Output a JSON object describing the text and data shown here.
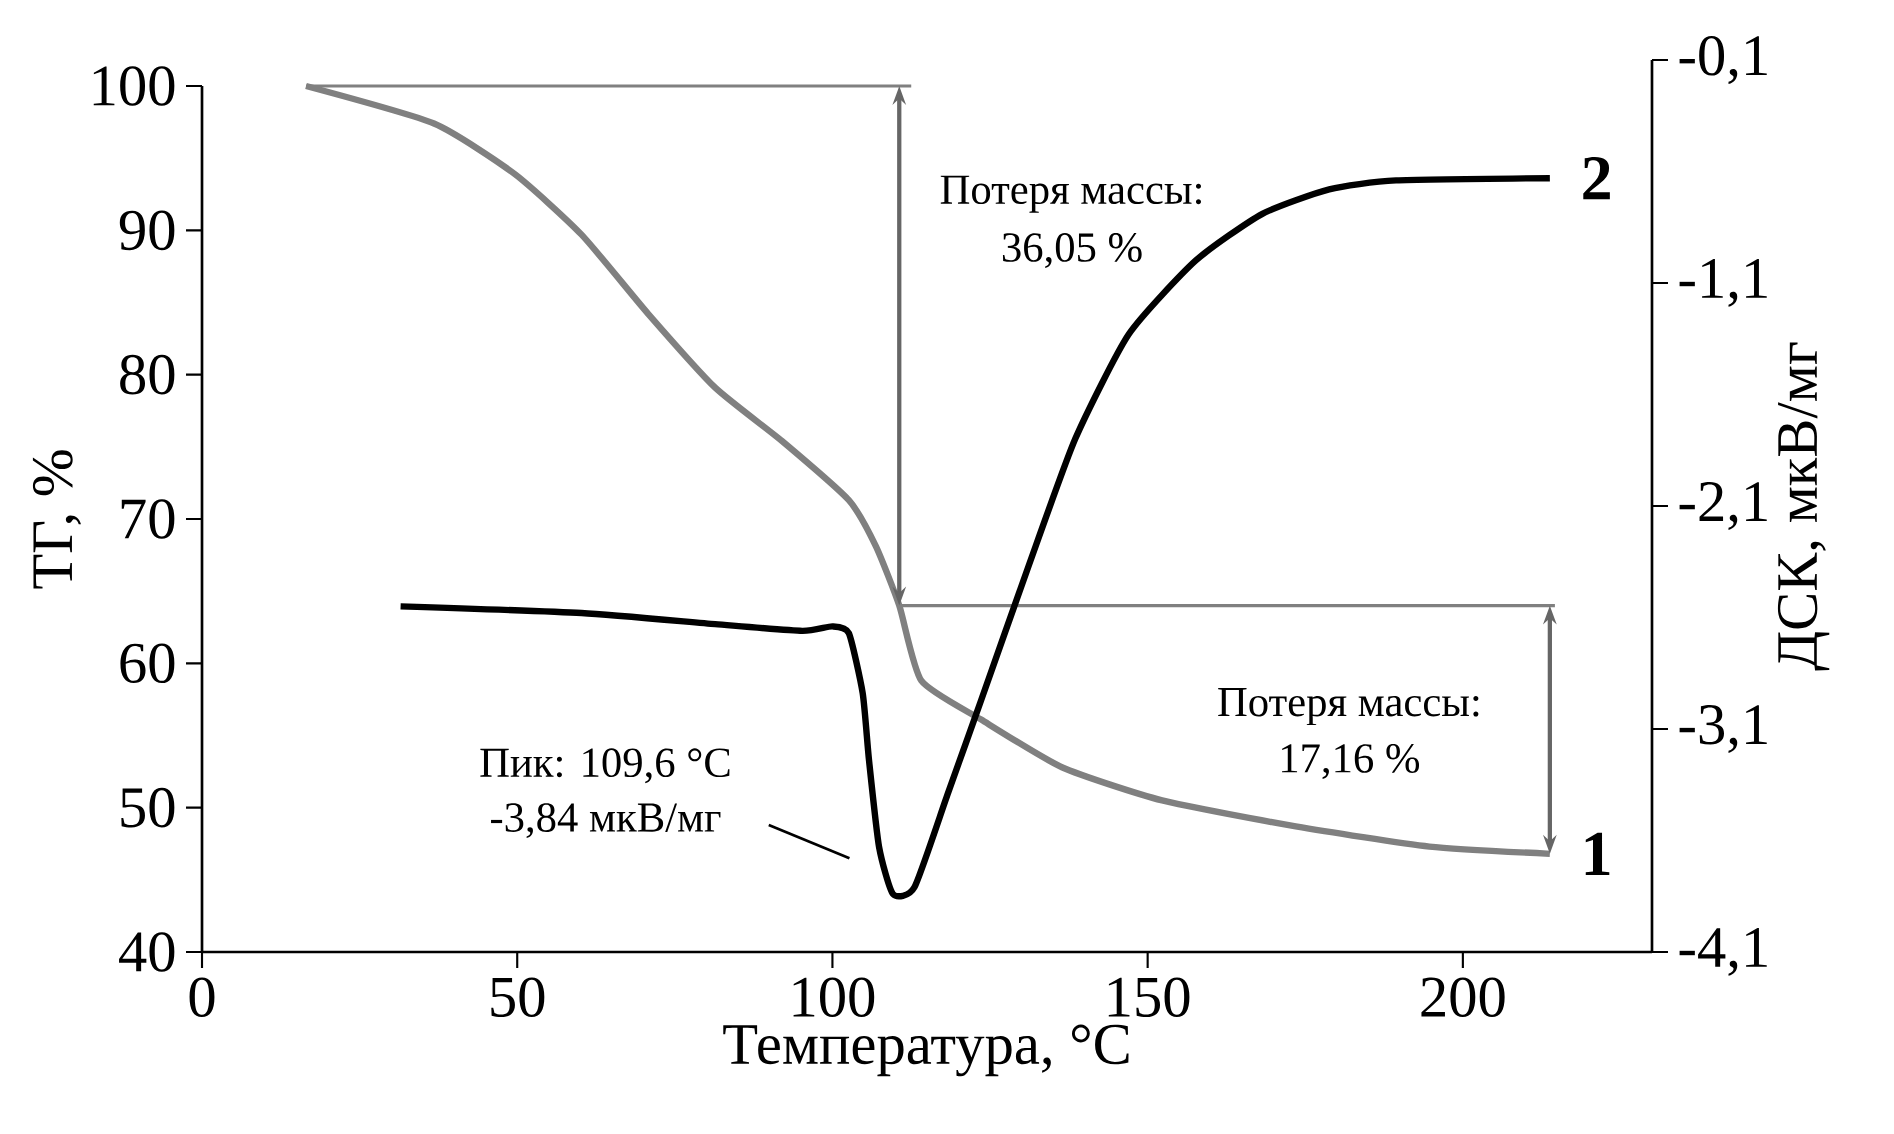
{
  "chart_data": {
    "type": "line",
    "xlabel": "Температура, °C",
    "ylabel": "ТГ, %",
    "y2label": "ДСК, мкВ/мг",
    "xlim": [
      0,
      230
    ],
    "xticks": [
      0,
      50,
      100,
      150,
      200
    ],
    "ylim": [
      40,
      100
    ],
    "yticks": [
      40,
      50,
      60,
      70,
      80,
      90,
      100
    ],
    "y2lim": [
      -4.1,
      -0.1
    ],
    "y2ticks": [
      {
        "value": -4.1,
        "label": "-4,1"
      },
      {
        "value": -3.1,
        "label": "-3,1"
      },
      {
        "value": -2.1,
        "label": "-2,1"
      },
      {
        "value": -1.1,
        "label": "-1,1"
      },
      {
        "value": -0.1,
        "label": "-0,1"
      }
    ],
    "series": [
      {
        "name": "1",
        "color": "#808080",
        "x": [
          16.5,
          36.8,
          49.6,
          60.2,
          70.8,
          81.4,
          92.0,
          102.6,
          106.9,
          110.6,
          114.1,
          123.6,
          136.4,
          152.3,
          173.5,
          194.7,
          213.8
        ],
        "values": [
          100,
          97.4,
          93.9,
          89.7,
          84.2,
          79.1,
          75.4,
          71.3,
          68.1,
          64,
          58.8,
          56.1,
          52.8,
          50.5,
          48.7,
          47.3,
          46.8
        ]
      },
      {
        "name": "2",
        "color": "#000000",
        "axis": "y2",
        "x": [
          31.5,
          60.2,
          81.4,
          95.2,
          100.0,
          102.6,
          104.8,
          105.8,
          107.4,
          109.6,
          113.0,
          118.3,
          123.6,
          131.1,
          138.5,
          147.0,
          157.6,
          168.2,
          178.8,
          189.4,
          213.8
        ],
        "values": [
          -2.55,
          -2.58,
          -2.63,
          -2.66,
          -2.64,
          -2.67,
          -2.94,
          -3.24,
          -3.63,
          -3.84,
          -3.81,
          -3.39,
          -2.97,
          -2.37,
          -1.8,
          -1.33,
          -1.0,
          -0.79,
          -0.68,
          -0.64,
          -0.63
        ]
      },
      {
        "color": "#808080",
        "x": [
          16.5,
          112.5
        ],
        "values": [
          100,
          100
        ]
      },
      {
        "color": "#808080",
        "x": [
          110.6,
          214.6
        ],
        "values": [
          64,
          64
        ]
      }
    ],
    "annotations": [
      "Потеря массы:",
      "36,05  %",
      "Потеря массы:",
      "17,16 %",
      "Пик: 109,6 °C",
      "-3,84 мкВ/мг"
    ]
  }
}
